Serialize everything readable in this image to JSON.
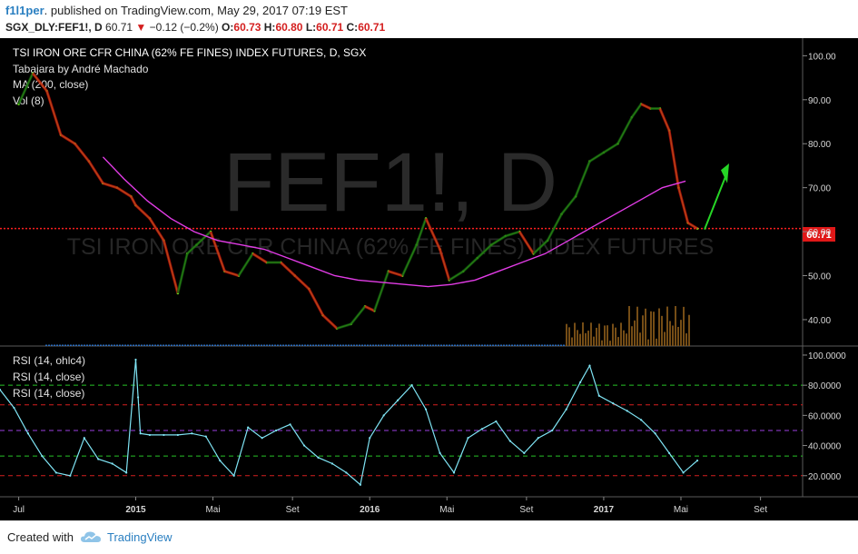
{
  "header": {
    "author": "f1l1per",
    "published": ". published on TradingView.com, May 29, 2017 07:19 EST",
    "symbol": "SGX_DLY:FEF1!, D",
    "last": "60.71",
    "change": "−0.12 (−0.2%)",
    "o_label": "O:",
    "o_value": "60.73",
    "h_label": "H:",
    "h_value": "60.80",
    "l_label": "L:",
    "l_value": "60.71",
    "c_label": "C:",
    "c_value": "60.71"
  },
  "panel_labels": {
    "title": "TSI IRON ORE CFR CHINA (62% FE FINES) INDEX FUTURES, D, SGX",
    "study1": "Tabajara by André Machado",
    "study2": "MA (200, close)",
    "study3": "Vol (8)",
    "watermark_symbol": "FEF1!, D",
    "watermark_desc": "TSI IRON ORE CFR CHINA (62% FE FINES) INDEX FUTURES",
    "rsi1": "RSI (14, ohlc4)",
    "rsi2": "RSI (14, close)",
    "rsi3": "RSI (14, close)",
    "price_tag": "60.71"
  },
  "footer": {
    "created": "Created with",
    "brand": "TradingView"
  },
  "colors": {
    "background": "#000000",
    "price_up": "#6ee01c",
    "tabajara_down": "#d01010",
    "tabajara_up": "#0f5a0f",
    "ma200": "#e23ce6",
    "rsi": "#7fe4f4",
    "volume": "#2b78d8",
    "arrow": "#26d626",
    "price_line": "#ff2020"
  },
  "chart_data": [
    {
      "type": "line",
      "title": "TSI IRON ORE CFR CHINA (62% FE FINES) INDEX FUTURES, D, SGX",
      "x_tick_labels": [
        "Jul",
        "2015",
        "Mai",
        "Set",
        "2016",
        "Mai",
        "Set",
        "2017",
        "Mai",
        "Set"
      ],
      "y_tick_labels": [
        "100.00",
        "90.00",
        "80.00",
        "70.00",
        "60.00",
        "50.00",
        "40.00"
      ],
      "ylim": [
        34,
        104
      ],
      "xlim": [
        2014.42,
        2017.85
      ],
      "series": [
        {
          "name": "FEF1!",
          "x": [
            2014.5,
            2014.56,
            2014.62,
            2014.68,
            2014.74,
            2014.8,
            2014.86,
            2014.92,
            2014.98,
            2015.0,
            2015.06,
            2015.12,
            2015.18,
            2015.22,
            2015.26,
            2015.32,
            2015.38,
            2015.44,
            2015.5,
            2015.56,
            2015.62,
            2015.68,
            2015.74,
            2015.8,
            2015.86,
            2015.92,
            2015.98,
            2016.02,
            2016.08,
            2016.14,
            2016.2,
            2016.24,
            2016.3,
            2016.34,
            2016.4,
            2016.46,
            2016.52,
            2016.58,
            2016.64,
            2016.7,
            2016.76,
            2016.82,
            2016.88,
            2016.94,
            2017.0,
            2017.06,
            2017.12,
            2017.16,
            2017.2,
            2017.24,
            2017.28,
            2017.32,
            2017.36,
            2017.4
          ],
          "values": [
            89,
            96,
            92,
            82,
            80,
            76,
            71,
            70,
            68,
            66,
            63,
            58,
            46,
            55,
            57,
            60,
            51,
            50,
            55,
            53,
            53,
            50,
            47,
            41,
            38,
            39,
            43,
            42,
            51,
            50,
            57,
            63,
            56,
            49,
            51,
            54,
            57,
            59,
            60,
            55,
            58,
            64,
            68,
            76,
            78,
            80,
            86,
            89,
            88,
            88,
            83,
            70,
            62,
            60.71
          ]
        },
        {
          "name": "MA (200, close)",
          "x": [
            2014.86,
            2014.95,
            2015.05,
            2015.15,
            2015.25,
            2015.35,
            2015.45,
            2015.55,
            2015.65,
            2015.75,
            2015.85,
            2015.95,
            2016.05,
            2016.15,
            2016.25,
            2016.35,
            2016.45,
            2016.55,
            2016.65,
            2016.75,
            2016.85,
            2016.95,
            2017.05,
            2017.15,
            2017.25,
            2017.35
          ],
          "values": [
            77,
            72,
            67,
            63,
            60,
            58,
            57,
            56,
            54,
            52,
            50,
            49,
            48.5,
            48,
            47.5,
            48,
            49,
            51,
            53,
            55,
            58,
            61,
            64,
            67,
            70,
            71.5
          ]
        }
      ]
    },
    {
      "type": "line",
      "title": "RSI",
      "y_tick_labels": [
        "100.0000",
        "80.0000",
        "60.0000",
        "40.0000",
        "20.0000"
      ],
      "ylim": [
        6,
        106
      ],
      "levels": [
        80,
        67,
        50,
        33,
        20
      ],
      "series": [
        {
          "name": "RSI (14, close)",
          "x": [
            2014.42,
            2014.48,
            2014.54,
            2014.6,
            2014.66,
            2014.72,
            2014.78,
            2014.84,
            2014.9,
            2014.96,
            2015.0,
            2015.01,
            2015.02,
            2015.06,
            2015.12,
            2015.18,
            2015.24,
            2015.3,
            2015.36,
            2015.42,
            2015.48,
            2015.54,
            2015.6,
            2015.66,
            2015.72,
            2015.78,
            2015.84,
            2015.9,
            2015.96,
            2016.0,
            2016.06,
            2016.12,
            2016.18,
            2016.24,
            2016.3,
            2016.36,
            2016.42,
            2016.48,
            2016.54,
            2016.6,
            2016.66,
            2016.72,
            2016.78,
            2016.84,
            2016.9,
            2016.94,
            2016.98,
            2017.04,
            2017.1,
            2017.16,
            2017.22,
            2017.28,
            2017.34,
            2017.4
          ],
          "values": [
            77,
            65,
            48,
            33,
            22,
            20,
            45,
            31,
            28,
            22,
            97,
            72,
            48,
            47,
            47,
            47,
            48,
            46,
            30,
            20,
            52,
            45,
            50,
            54,
            40,
            32,
            28,
            22,
            14,
            45,
            60,
            70,
            80,
            64,
            35,
            22,
            45,
            51,
            56,
            43,
            35,
            45,
            50,
            64,
            82,
            93,
            73,
            68,
            63,
            57,
            48,
            35,
            22,
            30
          ]
        }
      ]
    }
  ]
}
